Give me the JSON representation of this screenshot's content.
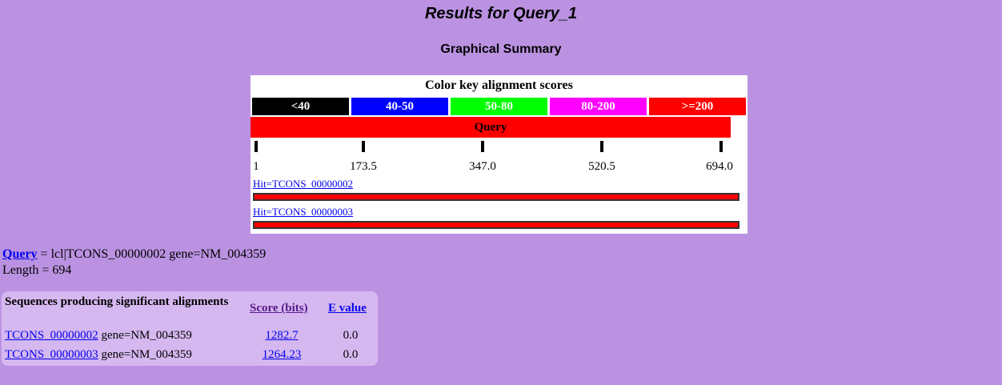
{
  "page": {
    "title": "Results for Query_1",
    "subtitle": "Graphical Summary"
  },
  "summary": {
    "colorkey_title": "Color key alignment scores",
    "colorkey": [
      {
        "label": "<40",
        "color": "#000000"
      },
      {
        "label": "40-50",
        "color": "#0000ff"
      },
      {
        "label": "50-80",
        "color": "#00ff00"
      },
      {
        "label": "80-200",
        "color": "#ff00ff"
      },
      {
        "label": ">=200",
        "color": "#ff0000"
      }
    ],
    "query_bar_label": "Query",
    "scale_ticks": [
      "1",
      "173.5",
      "347.0",
      "520.5",
      "694.0"
    ],
    "hits": [
      {
        "label": "Hit=TCONS_00000002",
        "bar_color": "#ff0000"
      },
      {
        "label": "Hit=TCONS_00000003",
        "bar_color": "#ff0000"
      }
    ]
  },
  "query_info": {
    "link": "Query",
    "description": " = lcl|TCONS_00000002 gene=NM_004359",
    "length": "Length = 694"
  },
  "results": {
    "header_desc": "Sequences producing significant alignments",
    "header_score": "Score (bits)",
    "header_evalue": "E value",
    "rows": [
      {
        "id": "TCONS_00000002",
        "gene": " gene=NM_004359",
        "score": "1282.7",
        "evalue": "0.0"
      },
      {
        "id": "TCONS_00000003",
        "gene": " gene=NM_004359",
        "score": "1264.23",
        "evalue": "0.0"
      }
    ]
  }
}
